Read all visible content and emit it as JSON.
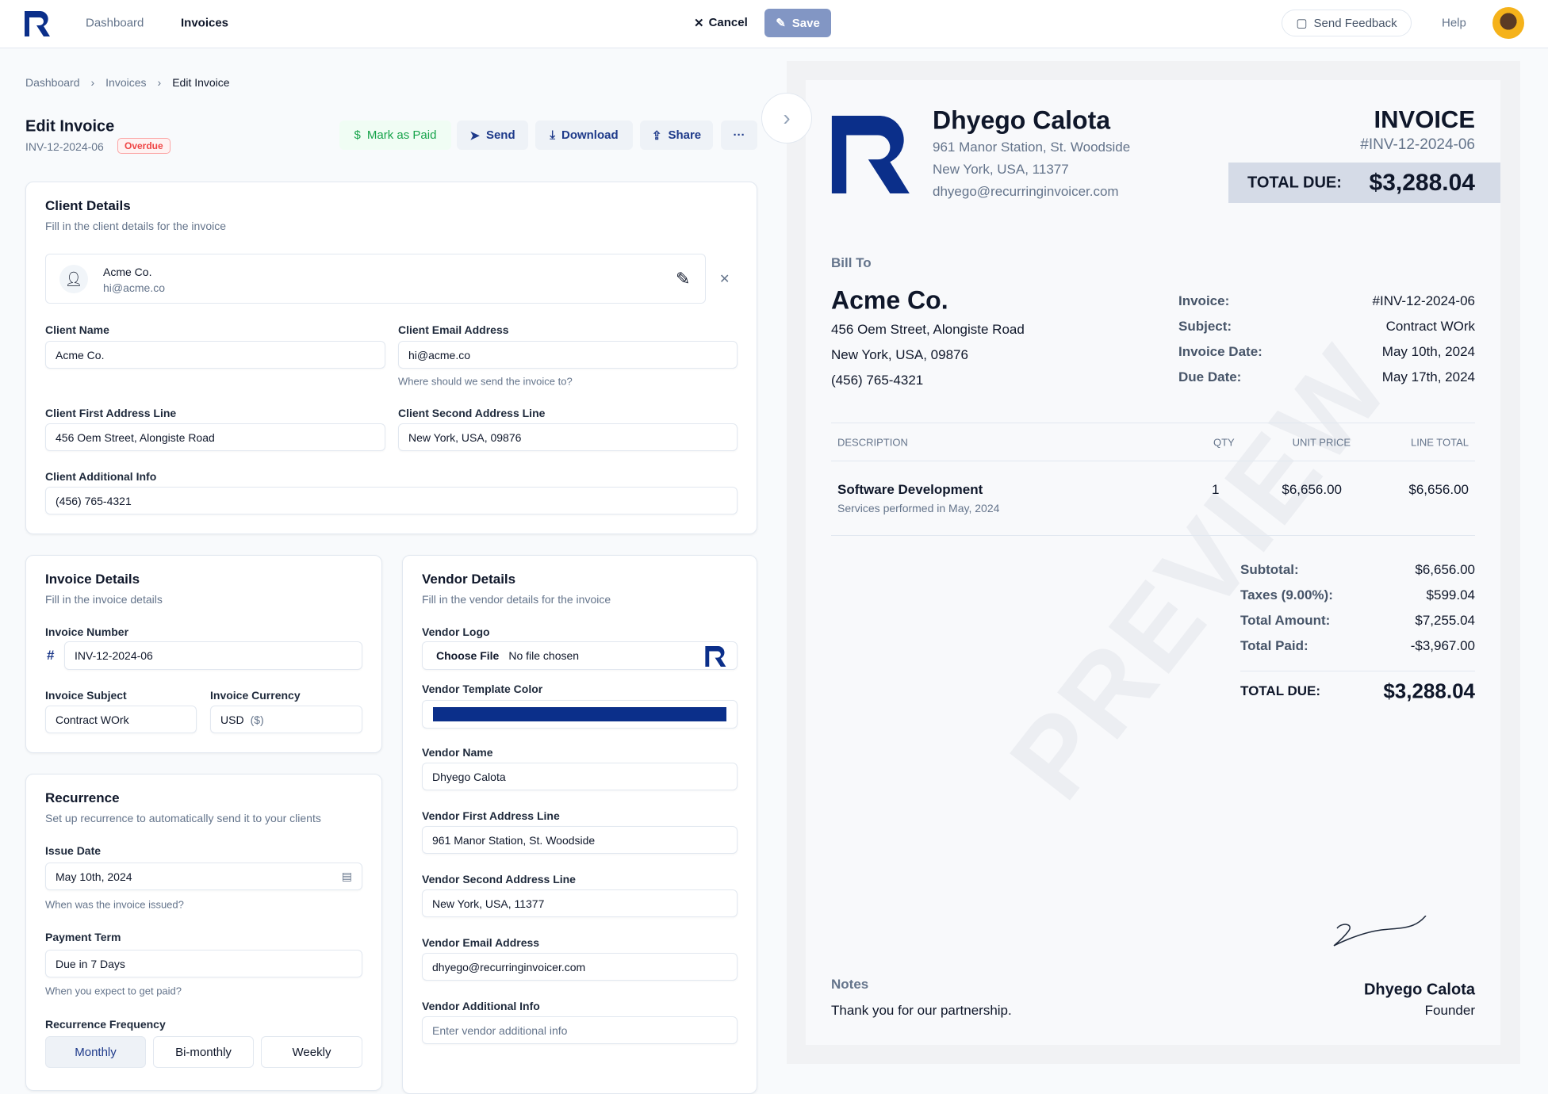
{
  "nav": {
    "links": [
      "Dashboard",
      "Invoices"
    ],
    "cancel": "Cancel",
    "save": "Save",
    "feedback": "Send Feedback",
    "help": "Help"
  },
  "breadcrumb": [
    "Dashboard",
    "Invoices",
    "Edit Invoice"
  ],
  "header": {
    "title": "Edit Invoice",
    "invoice_id": "INV-12-2024-06",
    "status": "Overdue",
    "actions": {
      "mark_paid": "Mark as Paid",
      "send": "Send",
      "download": "Download",
      "share": "Share",
      "more": "···"
    }
  },
  "client": {
    "title": "Client Details",
    "subtitle": "Fill in the client details for the invoice",
    "selected_name": "Acme Co.",
    "selected_email": "hi@acme.co",
    "fields": {
      "name_label": "Client Name",
      "name": "Acme Co.",
      "email_label": "Client Email Address",
      "email": "hi@acme.co",
      "email_help": "Where should we send the invoice to?",
      "addr1_label": "Client First Address Line",
      "addr1": "456 Oem Street, Alongiste Road",
      "addr2_label": "Client Second Address Line",
      "addr2": "New York, USA, 09876",
      "info_label": "Client Additional Info",
      "info": "(456) 765-4321"
    }
  },
  "invoice": {
    "title": "Invoice Details",
    "subtitle": "Fill in the invoice details",
    "number_label": "Invoice Number",
    "number_prefix": "#",
    "number": "INV-12-2024-06",
    "subject_label": "Invoice Subject",
    "subject": "Contract WOrk",
    "currency_label": "Invoice Currency",
    "currency": "USD",
    "currency_symbol": "($)"
  },
  "recurrence": {
    "title": "Recurrence",
    "subtitle": "Set up recurrence to automatically send it to your clients",
    "issue_label": "Issue Date",
    "issue": "May 10th, 2024",
    "issue_help": "When was the invoice issued?",
    "term_label": "Payment Term",
    "term": "Due in 7 Days",
    "term_help": "When you expect to get paid?",
    "freq_label": "Recurrence Frequency",
    "freq_options": [
      "Monthly",
      "Bi-monthly",
      "Weekly"
    ],
    "freq_selected": "Monthly"
  },
  "vendor": {
    "title": "Vendor Details",
    "subtitle": "Fill in the vendor details for the invoice",
    "logo_label": "Vendor Logo",
    "choose_file": "Choose File",
    "no_file": "No file chosen",
    "color_label": "Vendor Template Color",
    "color": "#0b2f8a",
    "name_label": "Vendor Name",
    "name": "Dhyego Calota",
    "addr1_label": "Vendor First Address Line",
    "addr1": "961 Manor Station, St. Woodside",
    "addr2_label": "Vendor Second Address Line",
    "addr2": "New York, USA, 11377",
    "email_label": "Vendor Email Address",
    "email": "dhyego@recurringinvoicer.com",
    "info_label": "Vendor Additional Info",
    "info_placeholder": "Enter vendor additional info"
  },
  "preview": {
    "watermark": "PREVIEW",
    "vendor_name": "Dhyego Calota",
    "vendor_lines": [
      "961 Manor Station, St. Woodside",
      "New York, USA, 11377",
      "dhyego@recurringinvoicer.com"
    ],
    "doc_title": "INVOICE",
    "doc_number": "#INV-12-2024-06",
    "total_due_label": "TOTAL DUE:",
    "total_due": "$3,288.04",
    "bill_to": "Bill To",
    "client_name": "Acme Co.",
    "client_lines": [
      "456 Oem Street, Alongiste Road",
      "New York, USA, 09876",
      "(456) 765-4321"
    ],
    "meta": [
      {
        "label": "Invoice:",
        "value": "#INV-12-2024-06"
      },
      {
        "label": "Subject:",
        "value": "Contract WOrk"
      },
      {
        "label": "Invoice Date:",
        "value": "May 10th, 2024"
      },
      {
        "label": "Due Date:",
        "value": "May 17th, 2024"
      }
    ],
    "table": {
      "headers": [
        "DESCRIPTION",
        "QTY",
        "UNIT PRICE",
        "LINE TOTAL"
      ],
      "rows": [
        {
          "title": "Software Development",
          "desc": "Services performed in May, 2024",
          "qty": "1",
          "unit": "$6,656.00",
          "total": "$6,656.00"
        }
      ]
    },
    "totals": [
      {
        "label": "Subtotal:",
        "value": "$6,656.00"
      },
      {
        "label": "Taxes (9.00%):",
        "value": "$599.04"
      },
      {
        "label": "Total Amount:",
        "value": "$7,255.04"
      },
      {
        "label": "Total Paid:",
        "value": "-$3,967.00"
      }
    ],
    "final_label": "TOTAL DUE:",
    "final_value": "$3,288.04",
    "notes_label": "Notes",
    "notes": "Thank you for our partnership.",
    "signer": "Dhyego Calota",
    "signer_title": "Founder"
  },
  "colors": {
    "brand": "#0b2f8a",
    "danger": "#ef4444",
    "success": "#16a34a"
  }
}
